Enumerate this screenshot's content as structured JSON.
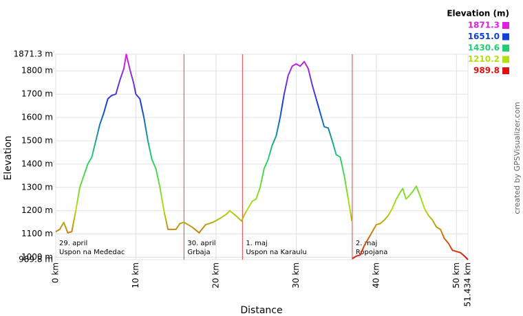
{
  "chart_data": {
    "type": "line",
    "xlabel": "Distance",
    "ylabel": "Elevation",
    "credit": "created by GPSVisualizer.com",
    "legend": {
      "title": "Elevation (m)",
      "entries": [
        {
          "value": 1871.3,
          "color": "#e020e0"
        },
        {
          "value": {
            "value": 1651,
            "label": "1651.0"
          },
          "color": "#1040d8"
        },
        {
          "value": 1430.6,
          "color": "#20d070"
        },
        {
          "value": 1210.2,
          "color": "#b0e010"
        },
        {
          "value": 989.8,
          "color": "#e01010"
        }
      ]
    },
    "x": [
      0,
      0.5,
      1,
      1.5,
      2,
      2.5,
      3,
      3.5,
      4,
      4.5,
      5,
      5.5,
      6,
      6.5,
      7,
      7.5,
      8,
      8.5,
      8.8,
      9.3,
      9.7,
      10,
      10.5,
      11,
      11.5,
      12,
      12.5,
      13,
      13.5,
      14,
      15,
      15.5,
      16,
      17,
      17.9,
      18.7,
      19.6,
      20.4,
      21.3,
      21.7,
      22.6,
      23.2,
      23.5,
      24,
      24.5,
      25,
      25.5,
      26,
      26.5,
      27,
      27.5,
      28,
      28.5,
      29,
      29.5,
      30,
      30.5,
      31,
      31.5,
      32,
      32.5,
      33,
      33.5,
      34,
      34.5,
      35,
      35.5,
      36,
      36.5,
      36.95,
      37,
      37.05,
      37.5,
      38,
      38.5,
      39,
      39.5,
      40,
      40.5,
      41,
      41.5,
      42,
      42.5,
      43,
      43.3,
      43.7,
      44,
      44.5,
      45,
      45.5,
      46,
      46.5,
      47,
      47.5,
      48,
      48.5,
      49,
      49.5,
      50,
      50.5,
      51,
      51.434
    ],
    "values": [
      1110,
      1120,
      1150,
      1105,
      1110,
      1200,
      1300,
      1350,
      1400,
      1430,
      1500,
      1570,
      1620,
      1680,
      1695,
      1700,
      1760,
      1810,
      1871.3,
      1800,
      1750,
      1700,
      1680,
      1600,
      1500,
      1420,
      1380,
      1300,
      1200,
      1120,
      1120,
      1145,
      1150,
      1130,
      1105,
      1140,
      1150,
      1165,
      1185,
      1200,
      1175,
      1155,
      1180,
      1210,
      1240,
      1250,
      1300,
      1380,
      1420,
      1480,
      1520,
      1600,
      1700,
      1780,
      1820,
      1830,
      1820,
      1840,
      1810,
      1740,
      1680,
      1620,
      1560,
      1555,
      1500,
      1440,
      1430,
      1350,
      1250,
      1155,
      null,
      995,
      1005,
      1010,
      1050,
      1080,
      1110,
      1140,
      1145,
      1160,
      1180,
      1210,
      1250,
      1280,
      1295,
      1250,
      1260,
      1280,
      1305,
      1260,
      1210,
      1180,
      1160,
      1130,
      1120,
      1080,
      1060,
      1030,
      1025,
      1020,
      1005,
      989.8
    ],
    "segments": [
      {
        "start": 0,
        "date": "29. april",
        "name": "Uspon na Međedac"
      },
      {
        "start": 16,
        "date": "30. april",
        "name": "Grbaja"
      },
      {
        "start": 23.3,
        "date": "1. maj",
        "name": "Uspon na Karaulu"
      },
      {
        "start": 37,
        "date": "2. maj",
        "name": "Ropojana"
      }
    ],
    "xlim": [
      0,
      51.434
    ],
    "xticks": [
      {
        "value": 0,
        "label": "0 km"
      },
      {
        "value": 10,
        "label": "10 km"
      },
      {
        "value": 20,
        "label": "20 km"
      },
      {
        "value": 30,
        "label": "30 km"
      },
      {
        "value": 40,
        "label": "40 km"
      },
      {
        "value": 50,
        "label": "50 km"
      },
      {
        "value": 51.434,
        "label": "51.434 km"
      }
    ],
    "ylim": [
      989.8,
      1871.3
    ],
    "yticks": [
      {
        "value": 989.8,
        "label": "989.8 m"
      },
      {
        "value": 1000,
        "label": "1000 m"
      },
      {
        "value": 1100,
        "label": "1100 m"
      },
      {
        "value": 1200,
        "label": "1200 m"
      },
      {
        "value": 1300,
        "label": "1300 m"
      },
      {
        "value": 1400,
        "label": "1400 m"
      },
      {
        "value": 1500,
        "label": "1500 m"
      },
      {
        "value": 1600,
        "label": "1600 m"
      },
      {
        "value": 1700,
        "label": "1700 m"
      },
      {
        "value": 1800,
        "label": "1800 m"
      },
      {
        "value": 1871.3,
        "label": "1871.3 m"
      }
    ],
    "grid": true,
    "divider_color": "#e04040"
  }
}
